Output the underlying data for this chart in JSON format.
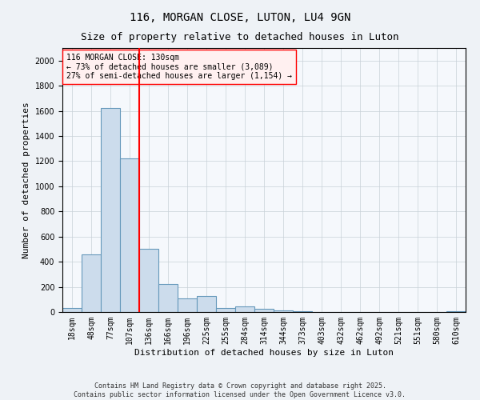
{
  "title": "116, MORGAN CLOSE, LUTON, LU4 9GN",
  "subtitle": "Size of property relative to detached houses in Luton",
  "xlabel": "Distribution of detached houses by size in Luton",
  "ylabel": "Number of detached properties",
  "categories": [
    "18sqm",
    "48sqm",
    "77sqm",
    "107sqm",
    "136sqm",
    "166sqm",
    "196sqm",
    "225sqm",
    "255sqm",
    "284sqm",
    "314sqm",
    "344sqm",
    "373sqm",
    "403sqm",
    "432sqm",
    "462sqm",
    "492sqm",
    "521sqm",
    "551sqm",
    "580sqm",
    "610sqm"
  ],
  "values": [
    30,
    460,
    1620,
    1220,
    500,
    220,
    110,
    125,
    30,
    45,
    25,
    10,
    5,
    0,
    0,
    0,
    0,
    0,
    0,
    0,
    5
  ],
  "bar_color": "#ccdcec",
  "bar_edge_color": "#6699bb",
  "vline_color": "red",
  "vline_x_index": 3.5,
  "annotation_text": "116 MORGAN CLOSE: 130sqm\n← 73% of detached houses are smaller (3,089)\n27% of semi-detached houses are larger (1,154) →",
  "annotation_box_facecolor": "#fff0f0",
  "annotation_box_edgecolor": "red",
  "ylim": [
    0,
    2100
  ],
  "yticks": [
    0,
    200,
    400,
    600,
    800,
    1000,
    1200,
    1400,
    1600,
    1800,
    2000
  ],
  "footer1": "Contains HM Land Registry data © Crown copyright and database right 2025.",
  "footer2": "Contains public sector information licensed under the Open Government Licence v3.0.",
  "bg_color": "#eef2f6",
  "plot_bg_color": "#f5f8fc",
  "title_fontsize": 10,
  "subtitle_fontsize": 9,
  "tick_fontsize": 7,
  "ylabel_fontsize": 8,
  "xlabel_fontsize": 8,
  "annotation_fontsize": 7,
  "footer_fontsize": 6
}
